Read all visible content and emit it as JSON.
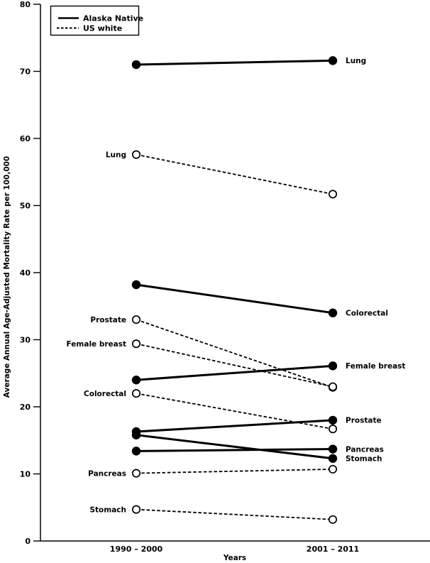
{
  "figure": {
    "background": "#ffffff",
    "ink_color": "#000000"
  },
  "legend": {
    "position": "top-left",
    "items": [
      {
        "label": "Alaska Native",
        "style": "solid"
      },
      {
        "label": "US white",
        "style": "dashed"
      }
    ]
  },
  "chart_data": {
    "type": "line",
    "subtype": "slopegraph",
    "title": "",
    "xlabel": "Years",
    "ylabel": "Average Annual Age-Adjusted Mortality Rate per 100,000",
    "categories": [
      "1990 – 2000",
      "2001 – 2011"
    ],
    "ylim": [
      0,
      80
    ],
    "yticks": [
      0,
      10,
      20,
      30,
      40,
      50,
      60,
      70,
      80
    ],
    "grid": false,
    "legend_position": "top-left",
    "marker_legend": {
      "filled_circle": "Alaska Native",
      "open_circle": "US white"
    },
    "series": [
      {
        "name": "Lung",
        "group": "Alaska Native",
        "style": "solid",
        "marker": "filled",
        "values": [
          71.0,
          71.6
        ],
        "label_side": "right"
      },
      {
        "name": "Colorectal",
        "group": "Alaska Native",
        "style": "solid",
        "marker": "filled",
        "values": [
          38.2,
          34.0
        ],
        "label_side": "right"
      },
      {
        "name": "Female breast",
        "group": "Alaska Native",
        "style": "solid",
        "marker": "filled",
        "values": [
          24.0,
          26.1
        ],
        "label_side": "right"
      },
      {
        "name": "Prostate",
        "group": "Alaska Native",
        "style": "solid",
        "marker": "filled",
        "values": [
          16.3,
          18.0
        ],
        "label_side": "right"
      },
      {
        "name": "Stomach",
        "group": "Alaska Native",
        "style": "solid",
        "marker": "filled",
        "values": [
          15.8,
          12.3
        ],
        "label_side": "right"
      },
      {
        "name": "Pancreas",
        "group": "Alaska Native",
        "style": "solid",
        "marker": "filled",
        "values": [
          13.4,
          13.7
        ],
        "label_side": "right"
      },
      {
        "name": "Lung",
        "group": "US white",
        "style": "dashed",
        "marker": "open",
        "values": [
          57.6,
          51.7
        ],
        "label_side": "left"
      },
      {
        "name": "Prostate",
        "group": "US white",
        "style": "dashed",
        "marker": "open",
        "values": [
          33.0,
          22.9
        ],
        "label_side": "left"
      },
      {
        "name": "Female breast",
        "group": "US white",
        "style": "dashed",
        "marker": "open",
        "values": [
          29.4,
          23.0
        ],
        "label_side": "left"
      },
      {
        "name": "Colorectal",
        "group": "US white",
        "style": "dashed",
        "marker": "open",
        "values": [
          22.0,
          16.7
        ],
        "label_side": "left"
      },
      {
        "name": "Pancreas",
        "group": "US white",
        "style": "dashed",
        "marker": "open",
        "values": [
          10.1,
          10.7
        ],
        "label_side": "left"
      },
      {
        "name": "Stomach",
        "group": "US white",
        "style": "dashed",
        "marker": "open",
        "values": [
          4.7,
          3.2
        ],
        "label_side": "left"
      }
    ]
  }
}
